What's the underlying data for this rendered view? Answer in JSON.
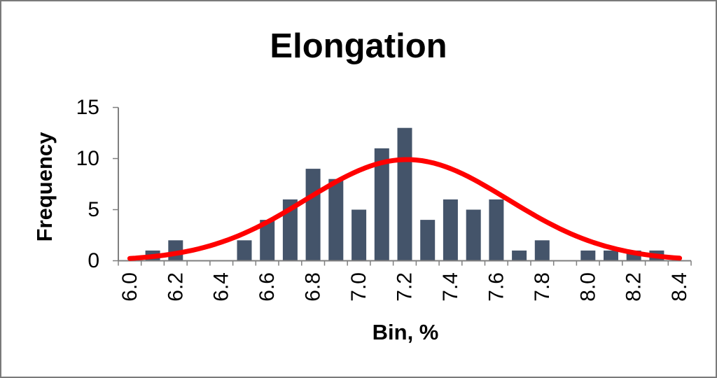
{
  "chart_data": {
    "type": "bar",
    "subtype": "histogram-with-normal-curve",
    "title": "Elongation",
    "xlabel": "Bin, %",
    "ylabel": "Frequency",
    "categories": [
      "6.0",
      "6.1",
      "6.2",
      "6.3",
      "6.4",
      "6.5",
      "6.6",
      "6.7",
      "6.8",
      "6.9",
      "7.0",
      "7.1",
      "7.2",
      "7.3",
      "7.4",
      "7.5",
      "7.6",
      "7.7",
      "7.8",
      "7.9",
      "8.0",
      "8.1",
      "8.2",
      "8.3",
      "8.4"
    ],
    "values": [
      0,
      1,
      2,
      0,
      0,
      2,
      4,
      6,
      9,
      8,
      5,
      11,
      13,
      4,
      6,
      5,
      6,
      1,
      2,
      0,
      1,
      1,
      1,
      1,
      0
    ],
    "x_tick_labels_shown": [
      "6.0",
      "6.2",
      "6.4",
      "6.6",
      "6.8",
      "7.0",
      "7.2",
      "7.4",
      "7.6",
      "7.8",
      "8.0",
      "8.2",
      "8.4"
    ],
    "x_label_every": 2,
    "y_ticks": [
      0,
      5,
      10,
      15
    ],
    "ylim": [
      0,
      15
    ],
    "grid": false,
    "legend": false,
    "bar_color": "#44546A",
    "axis_color": "#7F7F7F",
    "text_color": "#000000",
    "curve": {
      "type": "normal",
      "mean": 7.21,
      "sigma": 0.44,
      "peak": 9.9,
      "color": "#FF0000"
    }
  }
}
